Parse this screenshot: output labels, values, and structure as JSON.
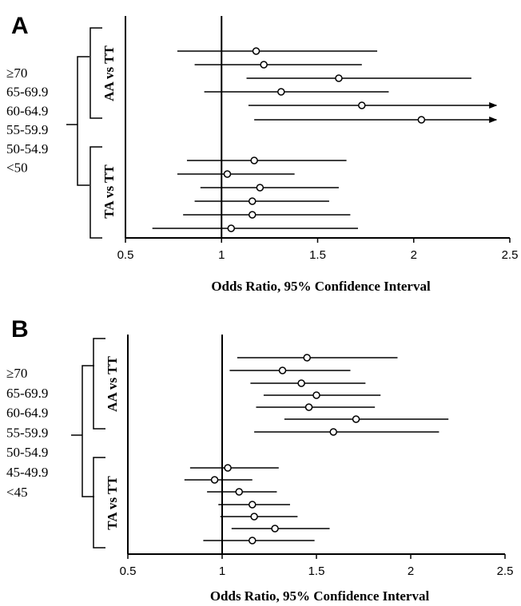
{
  "chart_data": [
    {
      "type": "forest",
      "panel_label": "A",
      "xlabel": "Odds Ratio, 95% Confidence Interval",
      "xlim": [
        0.5,
        2.5
      ],
      "xticks": [
        0.5,
        1,
        1.5,
        2,
        2.5
      ],
      "xtick_labels": [
        "0.5",
        "1",
        "1.5",
        "2",
        "2.5"
      ],
      "reference_line": 1,
      "age_categories": [
        "≥70",
        "65-69.9",
        "60-64.9",
        "55-59.9",
        "50-54.9",
        "<50"
      ],
      "groups": [
        {
          "name": "AA vs TT",
          "rows": [
            {
              "or": 1.18,
              "lo": 0.77,
              "hi": 1.81
            },
            {
              "or": 1.22,
              "lo": 0.86,
              "hi": 1.73
            },
            {
              "or": 1.61,
              "lo": 1.13,
              "hi": 2.3
            },
            {
              "or": 1.31,
              "lo": 0.91,
              "hi": 1.87
            },
            {
              "or": 1.73,
              "lo": 1.14,
              "hi": 2.43,
              "arrow": true
            },
            {
              "or": 2.04,
              "lo": 1.17,
              "hi": 2.43,
              "arrow": true
            }
          ]
        },
        {
          "name": "TA vs TT",
          "rows": [
            {
              "or": 1.17,
              "lo": 0.82,
              "hi": 1.65
            },
            {
              "or": 1.03,
              "lo": 0.77,
              "hi": 1.38
            },
            {
              "or": 1.2,
              "lo": 0.89,
              "hi": 1.61
            },
            {
              "or": 1.16,
              "lo": 0.86,
              "hi": 1.56
            },
            {
              "or": 1.16,
              "lo": 0.8,
              "hi": 1.67
            },
            {
              "or": 1.05,
              "lo": 0.64,
              "hi": 1.71
            }
          ]
        }
      ]
    },
    {
      "type": "forest",
      "panel_label": "B",
      "xlabel": "Odds Ratio, 95% Confidence Interval",
      "xlim": [
        0.5,
        2.5
      ],
      "xticks": [
        0.5,
        1,
        1.5,
        2,
        2.5
      ],
      "xtick_labels": [
        "0.5",
        "1",
        "1.5",
        "2",
        "2.5"
      ],
      "reference_line": 1,
      "age_categories": [
        "≥70",
        "65-69.9",
        "60-64.9",
        "55-59.9",
        "50-54.9",
        "45-49.9",
        "<45"
      ],
      "groups": [
        {
          "name": "AA vs TT",
          "rows": [
            {
              "or": 1.45,
              "lo": 1.08,
              "hi": 1.93
            },
            {
              "or": 1.32,
              "lo": 1.04,
              "hi": 1.68
            },
            {
              "or": 1.42,
              "lo": 1.15,
              "hi": 1.76
            },
            {
              "or": 1.5,
              "lo": 1.22,
              "hi": 1.84
            },
            {
              "or": 1.46,
              "lo": 1.18,
              "hi": 1.81
            },
            {
              "or": 1.71,
              "lo": 1.33,
              "hi": 2.2
            },
            {
              "or": 1.59,
              "lo": 1.17,
              "hi": 2.15
            }
          ]
        },
        {
          "name": "TA vs TT",
          "rows": [
            {
              "or": 1.03,
              "lo": 0.83,
              "hi": 1.3
            },
            {
              "or": 0.96,
              "lo": 0.8,
              "hi": 1.16
            },
            {
              "or": 1.09,
              "lo": 0.92,
              "hi": 1.29
            },
            {
              "or": 1.16,
              "lo": 0.98,
              "hi": 1.36
            },
            {
              "or": 1.17,
              "lo": 0.99,
              "hi": 1.4
            },
            {
              "or": 1.28,
              "lo": 1.05,
              "hi": 1.57
            },
            {
              "or": 1.16,
              "lo": 0.9,
              "hi": 1.49
            }
          ]
        }
      ]
    }
  ]
}
